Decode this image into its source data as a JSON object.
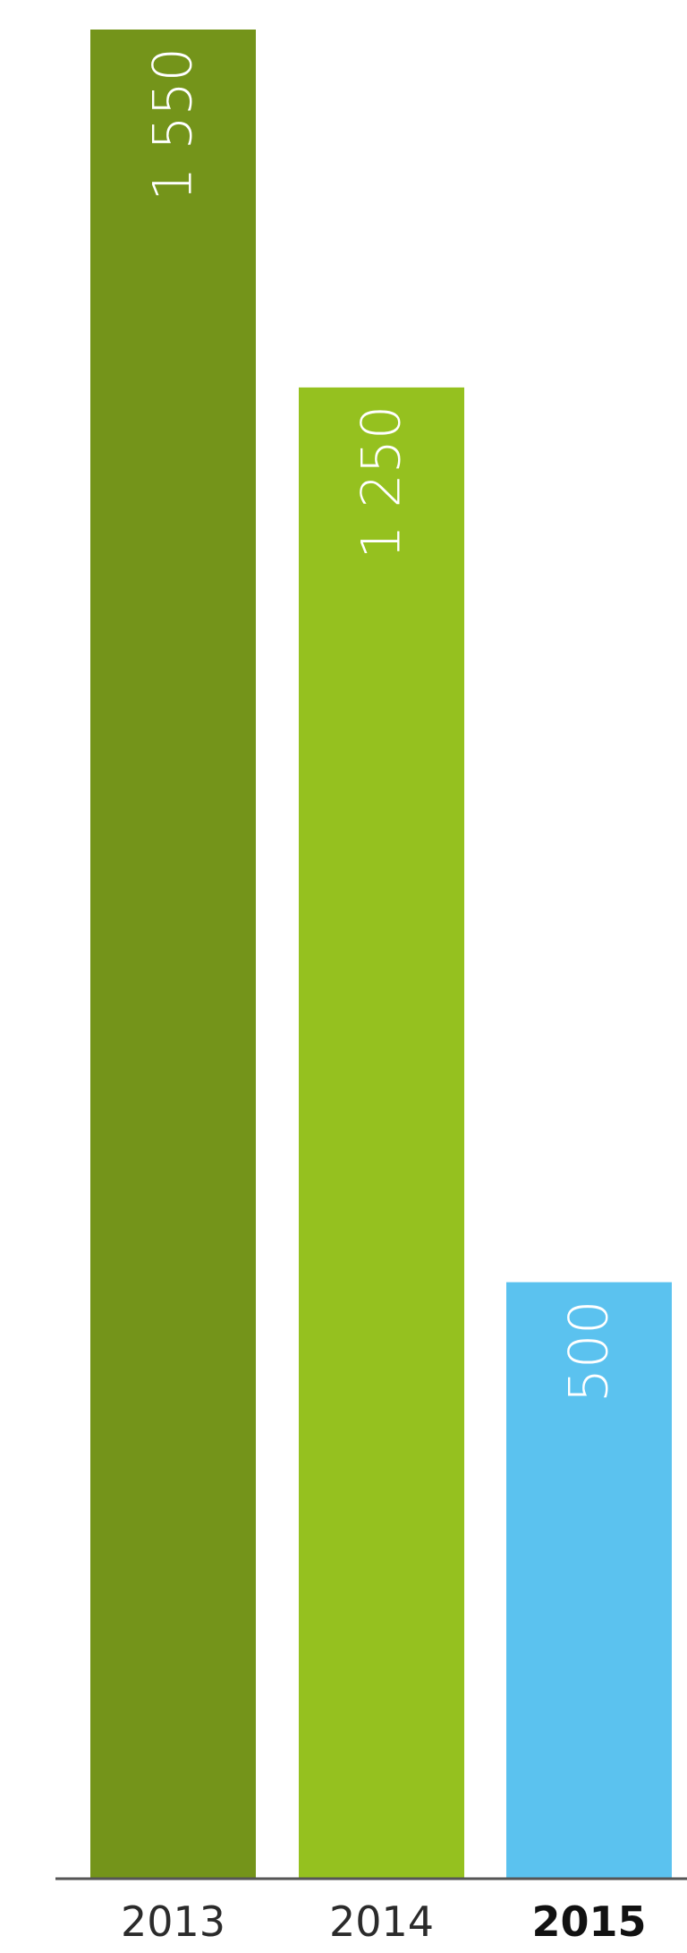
{
  "chart_data": {
    "type": "bar",
    "categories": [
      "2013",
      "2014",
      "2015"
    ],
    "values": [
      1550,
      1250,
      500
    ],
    "data_labels": [
      "1 550",
      "1 250",
      "500"
    ],
    "colors": [
      "#74941a",
      "#95c11f",
      "#5bc2ef"
    ],
    "highlighted_category": "2015",
    "title": "",
    "xlabel": "",
    "ylabel": "",
    "ylim": [
      0,
      1550
    ],
    "grid": false,
    "axis_color": "#555555"
  }
}
